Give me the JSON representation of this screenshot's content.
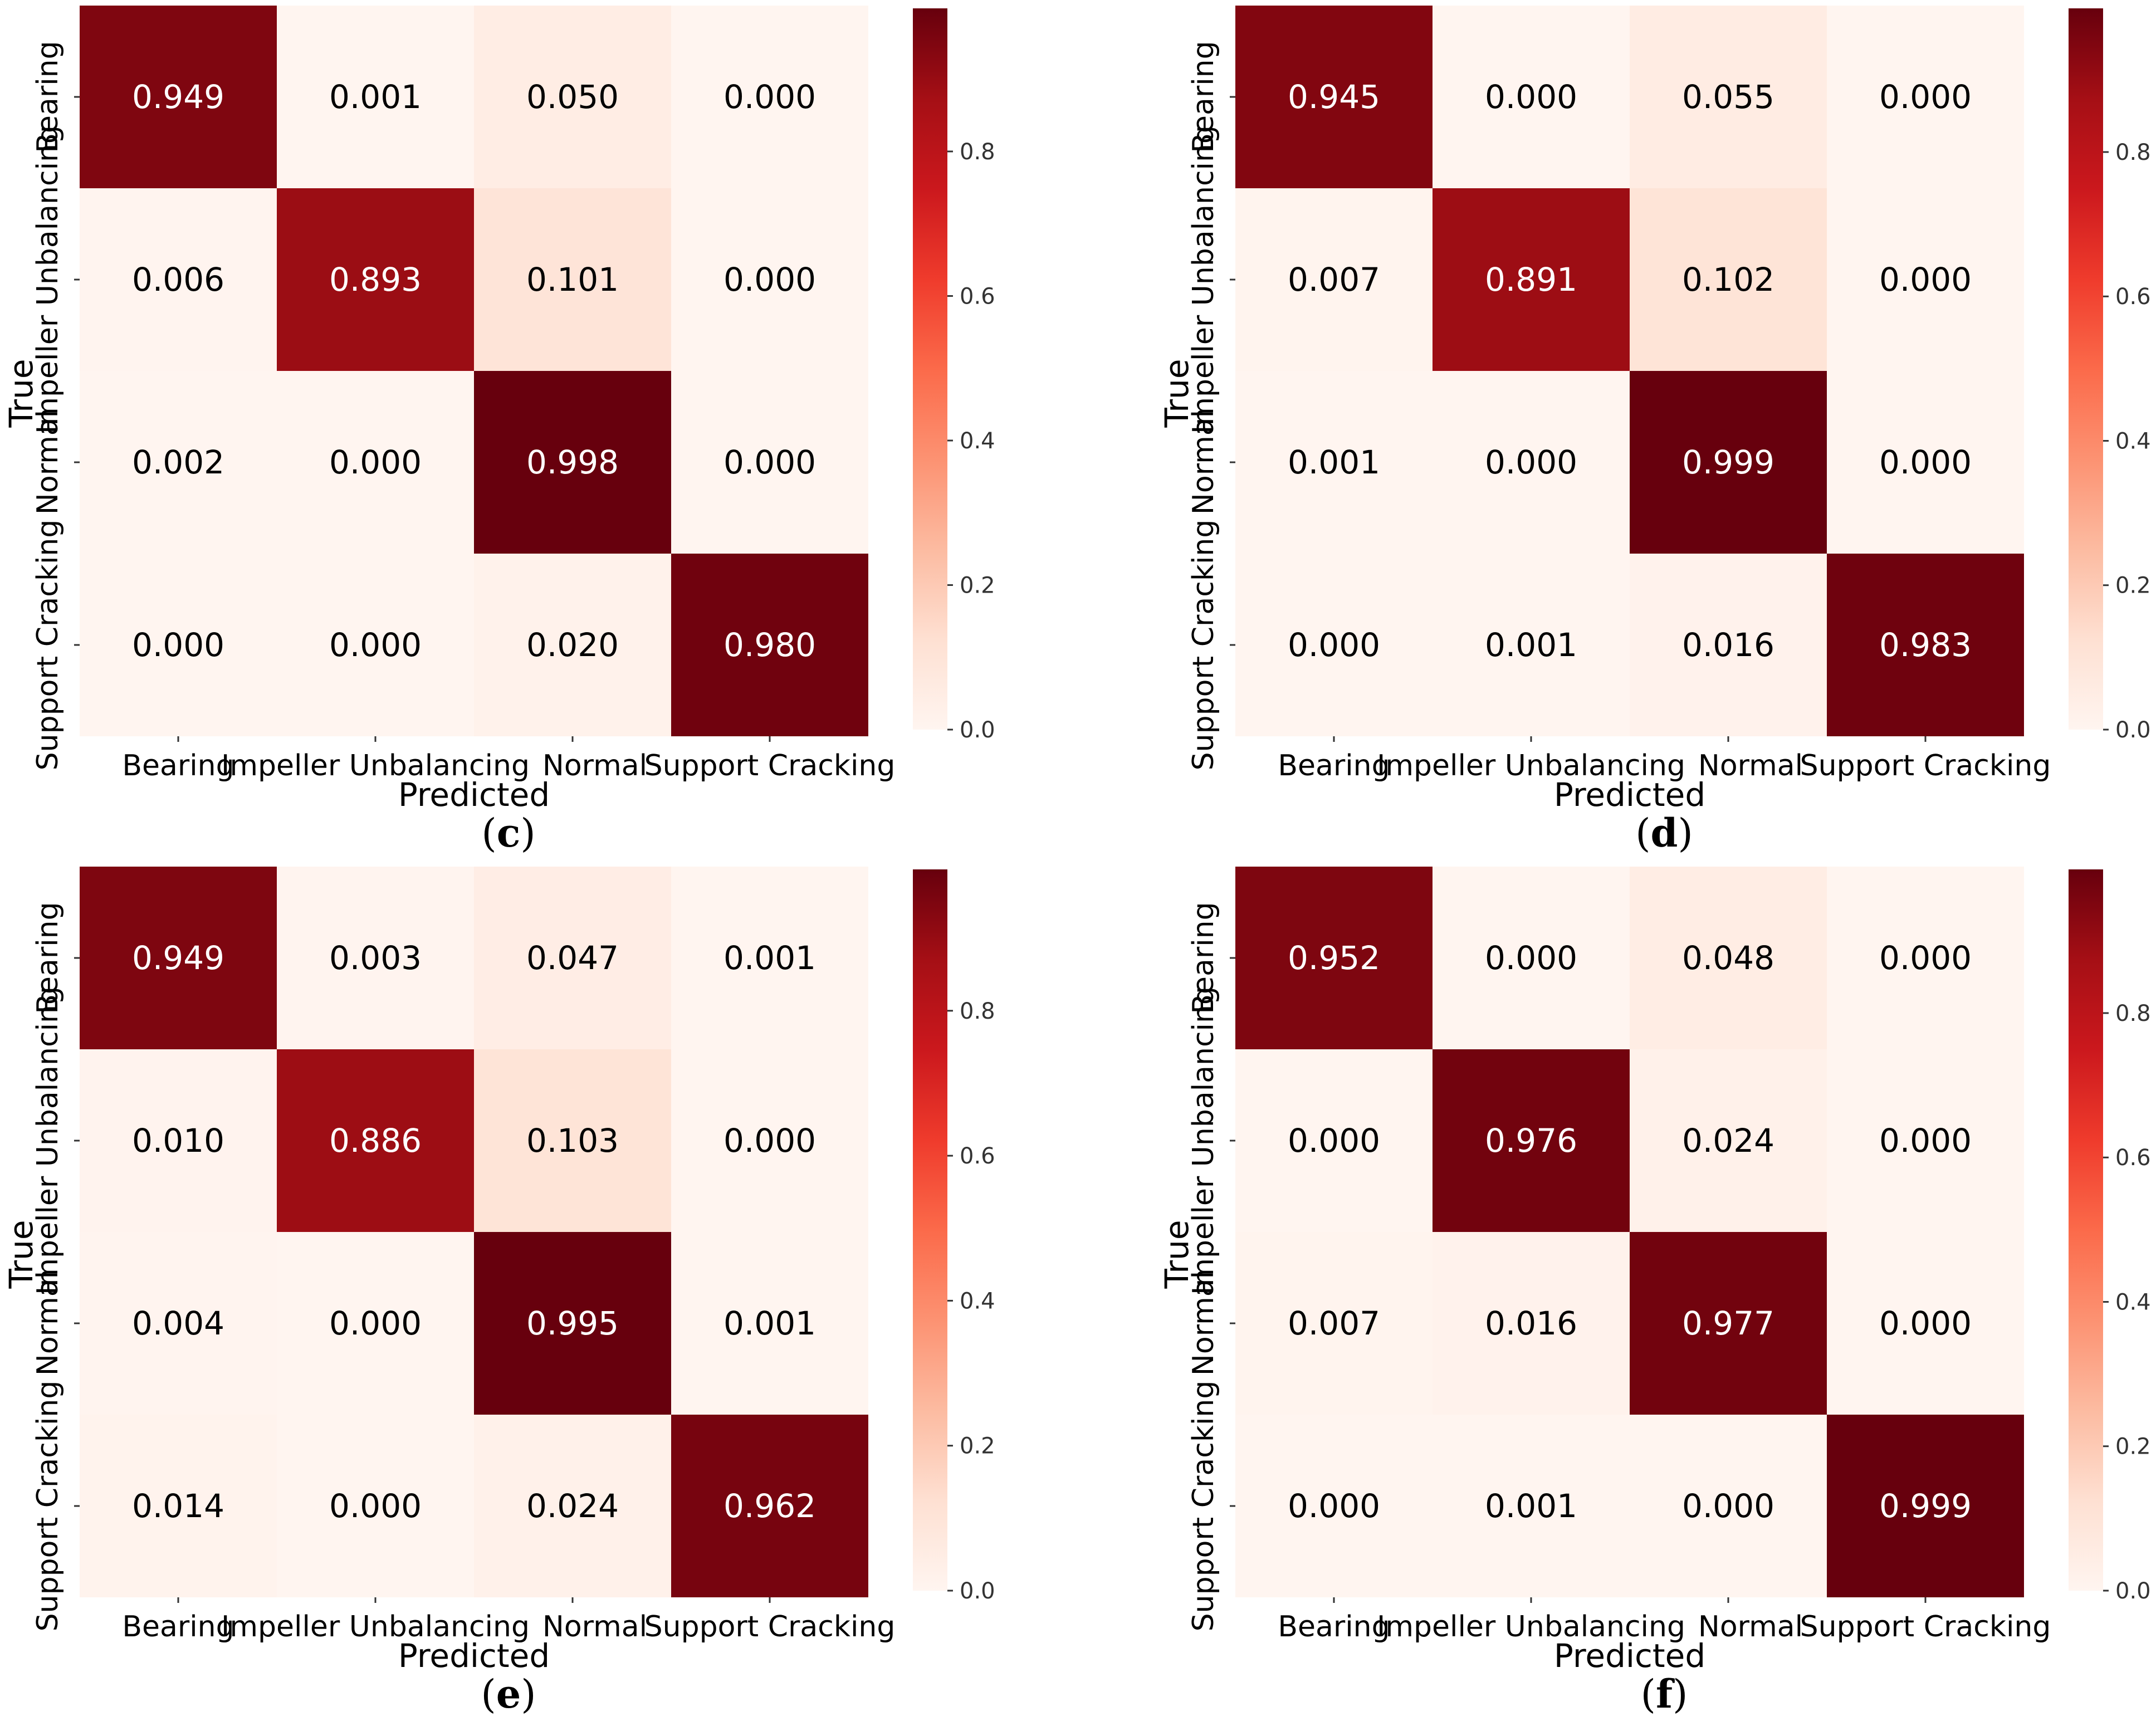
{
  "chart_data": [
    {
      "type": "heatmap",
      "panel_label": "c",
      "title": "",
      "xlabel": "Predicted",
      "ylabel": "True",
      "categories": [
        "Bearing",
        "Impeller Unbalancing",
        "Normal",
        "Support Cracking"
      ],
      "values": [
        [
          0.949,
          0.001,
          0.05,
          0.0
        ],
        [
          0.006,
          0.893,
          0.101,
          0.0
        ],
        [
          0.002,
          0.0,
          0.998,
          0.0
        ],
        [
          0.0,
          0.0,
          0.02,
          0.98
        ]
      ],
      "cell_labels": [
        [
          "0.949",
          "0.001",
          "0.050",
          "0.000"
        ],
        [
          "0.006",
          "0.893",
          "0.101",
          "0.000"
        ],
        [
          "0.002",
          "0.000",
          "0.998",
          "0.000"
        ],
        [
          "0.000",
          "0.000",
          "0.020",
          "0.980"
        ]
      ],
      "colorbar": {
        "min": 0.0,
        "max": 0.998,
        "ticks": [
          "0.0",
          "0.2",
          "0.4",
          "0.6",
          "0.8"
        ],
        "colormap": "Reds"
      }
    },
    {
      "type": "heatmap",
      "panel_label": "d",
      "title": "",
      "xlabel": "Predicted",
      "ylabel": "True",
      "categories": [
        "Bearing",
        "Impeller Unbalancing",
        "Normal",
        "Support Cracking"
      ],
      "values": [
        [
          0.945,
          0.0,
          0.055,
          0.0
        ],
        [
          0.007,
          0.891,
          0.102,
          0.0
        ],
        [
          0.001,
          0.0,
          0.999,
          0.0
        ],
        [
          0.0,
          0.001,
          0.016,
          0.983
        ]
      ],
      "cell_labels": [
        [
          "0.945",
          "0.000",
          "0.055",
          "0.000"
        ],
        [
          "0.007",
          "0.891",
          "0.102",
          "0.000"
        ],
        [
          "0.001",
          "0.000",
          "0.999",
          "0.000"
        ],
        [
          "0.000",
          "0.001",
          "0.016",
          "0.983"
        ]
      ],
      "colorbar": {
        "min": 0.0,
        "max": 0.999,
        "ticks": [
          "0.0",
          "0.2",
          "0.4",
          "0.6",
          "0.8"
        ],
        "colormap": "Reds"
      }
    },
    {
      "type": "heatmap",
      "panel_label": "e",
      "title": "",
      "xlabel": "Predicted",
      "ylabel": "True",
      "categories": [
        "Bearing",
        "Impeller Unbalancing",
        "Normal",
        "Support Cracking"
      ],
      "values": [
        [
          0.949,
          0.003,
          0.047,
          0.001
        ],
        [
          0.01,
          0.886,
          0.103,
          0.0
        ],
        [
          0.004,
          0.0,
          0.995,
          0.001
        ],
        [
          0.014,
          0.0,
          0.024,
          0.962
        ]
      ],
      "cell_labels": [
        [
          "0.949",
          "0.003",
          "0.047",
          "0.001"
        ],
        [
          "0.010",
          "0.886",
          "0.103",
          "0.000"
        ],
        [
          "0.004",
          "0.000",
          "0.995",
          "0.001"
        ],
        [
          "0.014",
          "0.000",
          "0.024",
          "0.962"
        ]
      ],
      "colorbar": {
        "min": 0.0,
        "max": 0.995,
        "ticks": [
          "0.0",
          "0.2",
          "0.4",
          "0.6",
          "0.8"
        ],
        "colormap": "Reds"
      }
    },
    {
      "type": "heatmap",
      "panel_label": "f",
      "title": "",
      "xlabel": "Predicted",
      "ylabel": "True",
      "categories": [
        "Bearing",
        "Impeller Unbalancing",
        "Normal",
        "Support Cracking"
      ],
      "values": [
        [
          0.952,
          0.0,
          0.048,
          0.0
        ],
        [
          0.0,
          0.976,
          0.024,
          0.0
        ],
        [
          0.007,
          0.016,
          0.977,
          0.0
        ],
        [
          0.0,
          0.001,
          0.0,
          0.999
        ]
      ],
      "cell_labels": [
        [
          "0.952",
          "0.000",
          "0.048",
          "0.000"
        ],
        [
          "0.000",
          "0.976",
          "0.024",
          "0.000"
        ],
        [
          "0.007",
          "0.016",
          "0.977",
          "0.000"
        ],
        [
          "0.000",
          "0.001",
          "0.000",
          "0.999"
        ]
      ],
      "colorbar": {
        "min": 0.0,
        "max": 0.999,
        "ticks": [
          "0.0",
          "0.2",
          "0.4",
          "0.6",
          "0.8"
        ],
        "colormap": "Reds"
      }
    }
  ]
}
